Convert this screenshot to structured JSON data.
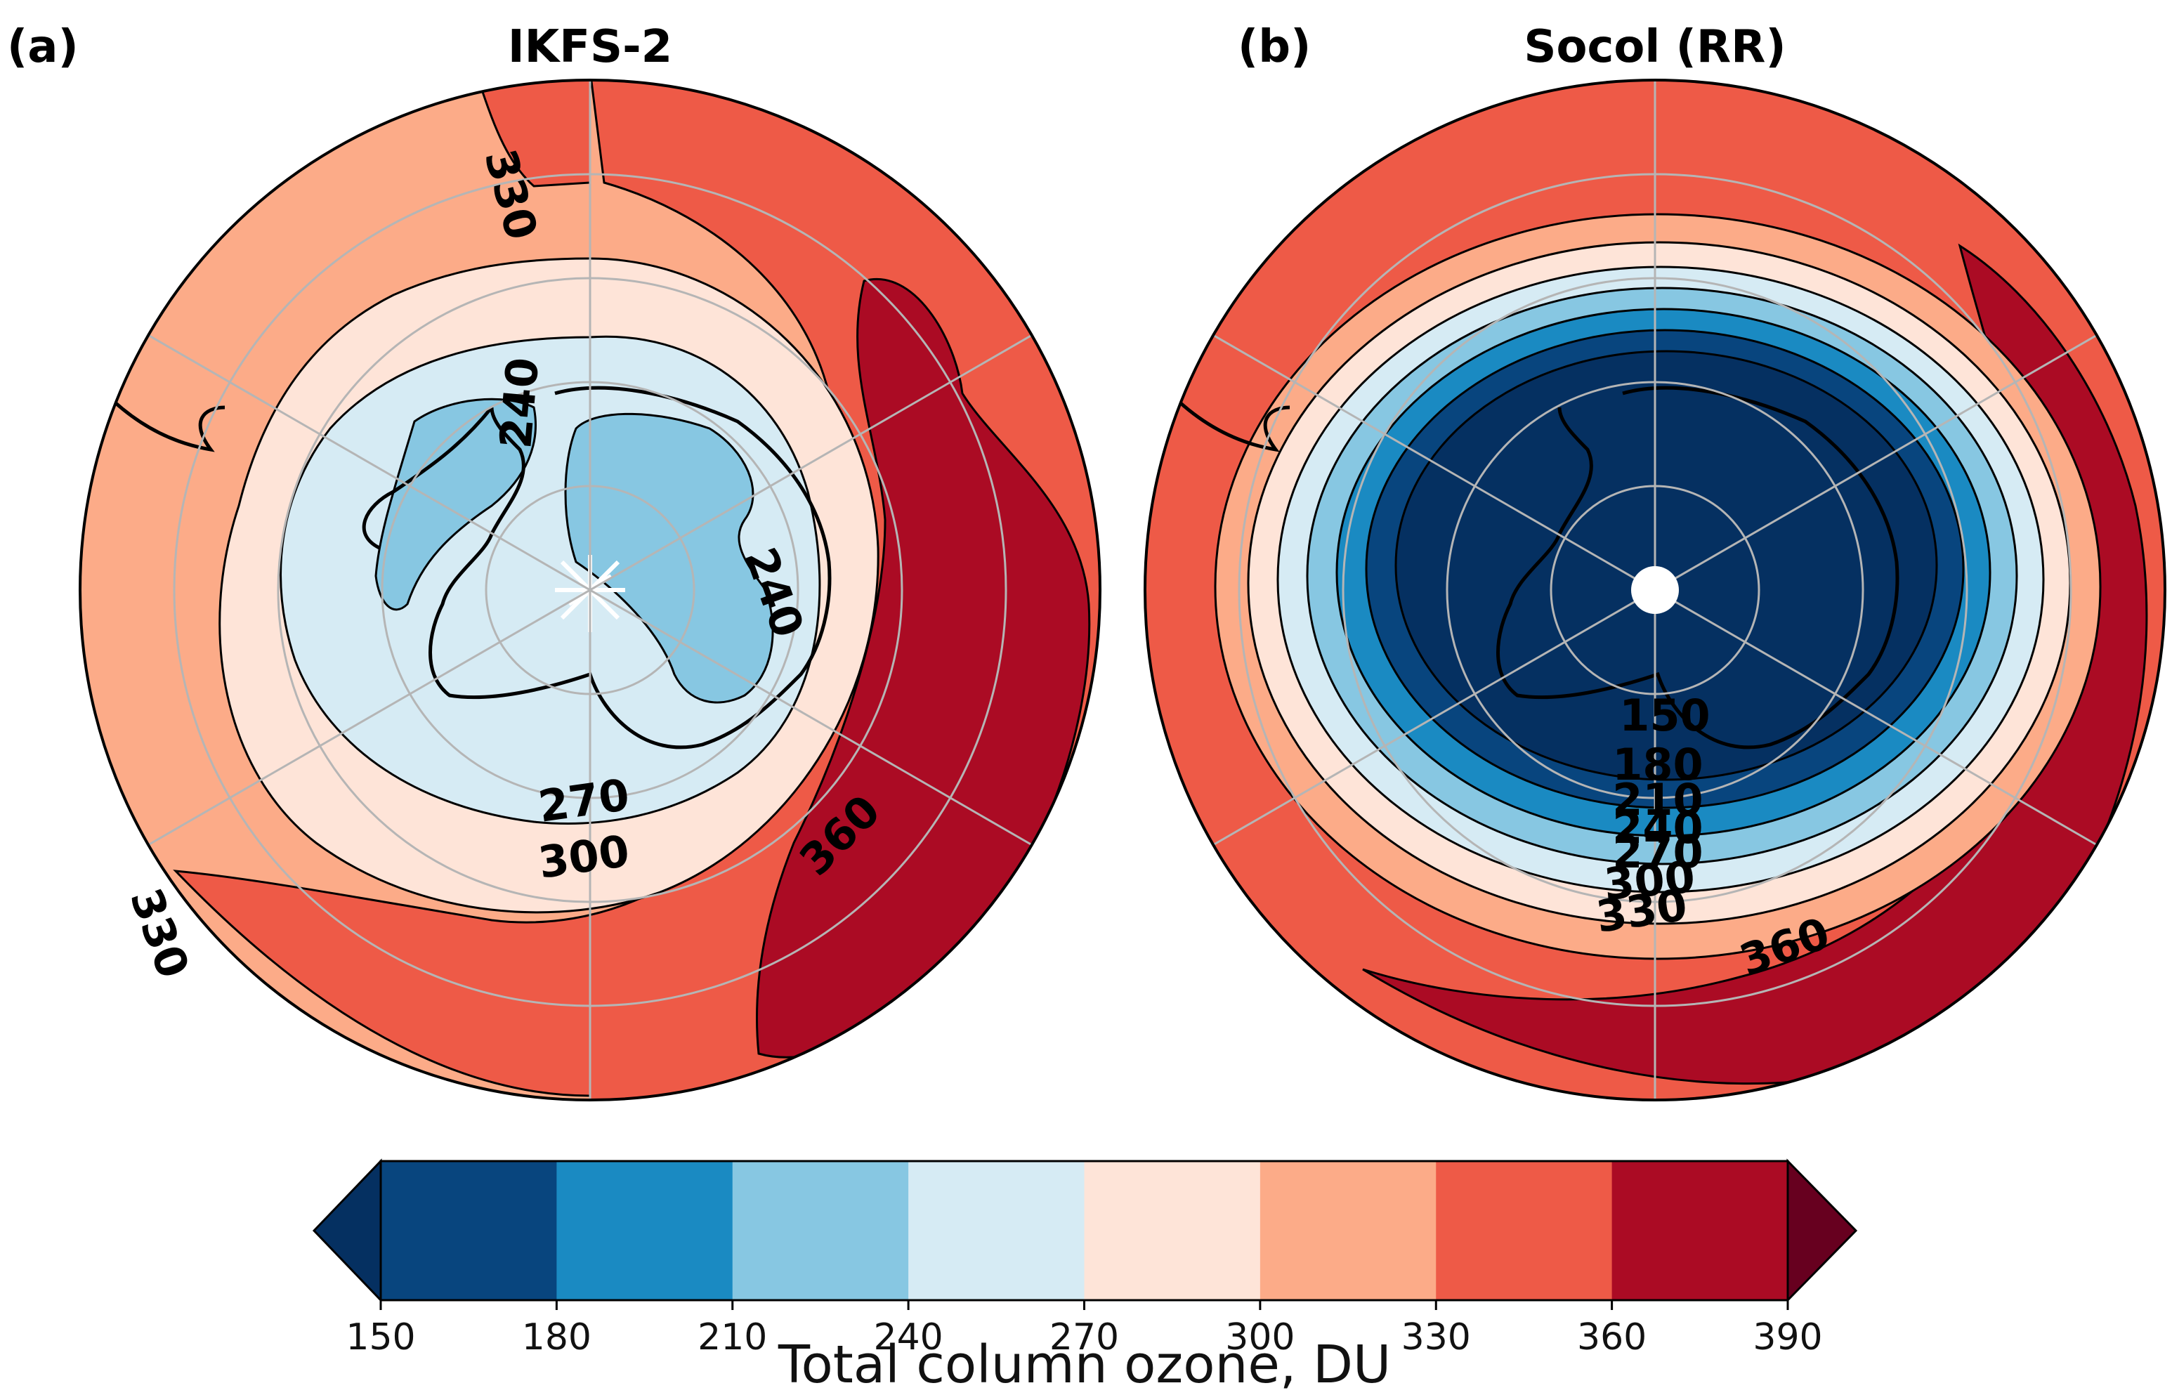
{
  "panels": [
    {
      "id": "a",
      "panel_label": "(a)",
      "title": "IKFS-2",
      "contour_labels": [
        "330",
        "240",
        "240",
        "270",
        "300",
        "360",
        "330"
      ]
    },
    {
      "id": "b",
      "panel_label": "(b)",
      "title": "Socol (RR)",
      "contour_labels": [
        "150",
        "180",
        "210",
        "240",
        "270",
        "300",
        "330",
        "360"
      ]
    }
  ],
  "colorbar": {
    "label": "Total column ozone, DU",
    "ticks": [
      "150",
      "180",
      "210",
      "240",
      "270",
      "300",
      "330",
      "360",
      "390"
    ],
    "levels": [
      {
        "range": "150-180",
        "color": "#08457e"
      },
      {
        "range": "180-210",
        "color": "#1a8ac2"
      },
      {
        "range": "210-240",
        "color": "#87c7e2"
      },
      {
        "range": "240-270",
        "color": "#d6ebf4"
      },
      {
        "range": "270-300",
        "color": "#fee4d8"
      },
      {
        "range": "300-330",
        "color": "#fcab88"
      },
      {
        "range": "330-360",
        "color": "#ee5a47"
      },
      {
        "range": "360-390",
        "color": "#ab0b24"
      }
    ],
    "under_color": "#053061",
    "over_color": "#67001f",
    "extend": "both"
  },
  "chart_data": {
    "type": "heatmap",
    "projection": "south polar stereographic",
    "variable": "Total column ozone, DU",
    "levels": [
      150,
      180,
      210,
      240,
      270,
      300,
      330,
      360,
      390
    ],
    "grid": true,
    "panels": [
      {
        "title": "IKFS-2",
        "contours": [
          240,
          270,
          300,
          330,
          360
        ],
        "range_shown": [
          210,
          390
        ]
      },
      {
        "title": "Socol (RR)",
        "contours": [
          150,
          180,
          210,
          240,
          270,
          300,
          330,
          360
        ],
        "range_shown": [
          150,
          390
        ]
      }
    ]
  }
}
